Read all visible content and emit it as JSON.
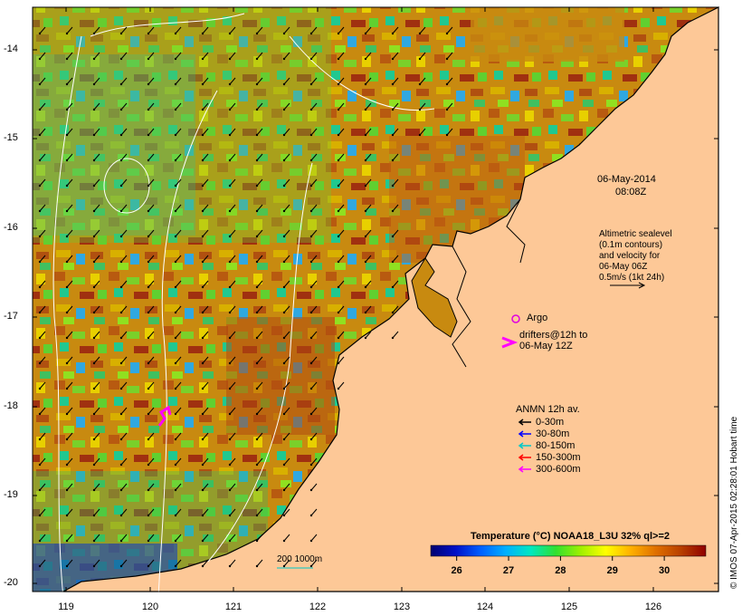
{
  "map": {
    "lat_labels": [
      "-14",
      "-15",
      "-16",
      "-17",
      "-18",
      "-19",
      "-20"
    ],
    "lon_labels": [
      "119",
      "120",
      "121",
      "122",
      "123",
      "124",
      "125",
      "126"
    ],
    "colors": {
      "land": "#fdc897",
      "coast": "#000000",
      "contour": "#ffffff",
      "argo": "#e000e0",
      "drifter": "#ff00ff"
    }
  },
  "annotations": {
    "date": "06-May-2014",
    "time": "08:08Z",
    "altimetry_line1": "Altimetric sealevel",
    "altimetry_line2": "(0.1m contours)",
    "altimetry_line3": "and velocity for",
    "altimetry_line4": "06-May 06Z",
    "altimetry_line5": "0.5m/s (1kt 24h)",
    "argo_label": "Argo",
    "drifters_line1": "drifters@12h to",
    "drifters_line2": "06-May 12Z",
    "depth_contours": "200  1000m"
  },
  "legend": {
    "title": "ANMN 12h av.",
    "items": [
      {
        "label": "0-30m",
        "color": "#000000"
      },
      {
        "label": "30-80m",
        "color": "#0000ff"
      },
      {
        "label": "80-150m",
        "color": "#00c8c8"
      },
      {
        "label": "150-300m",
        "color": "#ff0000"
      },
      {
        "label": "300-600m",
        "color": "#ff00ff"
      }
    ]
  },
  "colorbar": {
    "title": "Temperature (°C) NOAA18_L3U 32% ql>=2",
    "ticks": [
      "26",
      "27",
      "28",
      "29",
      "30"
    ],
    "tick_values": [
      26,
      27,
      28,
      29,
      30
    ],
    "range": [
      25.5,
      30.8
    ],
    "stops": [
      "#000070",
      "#0010c8",
      "#0060ff",
      "#00b0ff",
      "#00e8c0",
      "#30e030",
      "#a0f000",
      "#ffff00",
      "#ffb000",
      "#e07000",
      "#b84000",
      "#900000"
    ]
  },
  "credit": "© IMOS 07-Apr-2015 02:28:01 Hobart time"
}
